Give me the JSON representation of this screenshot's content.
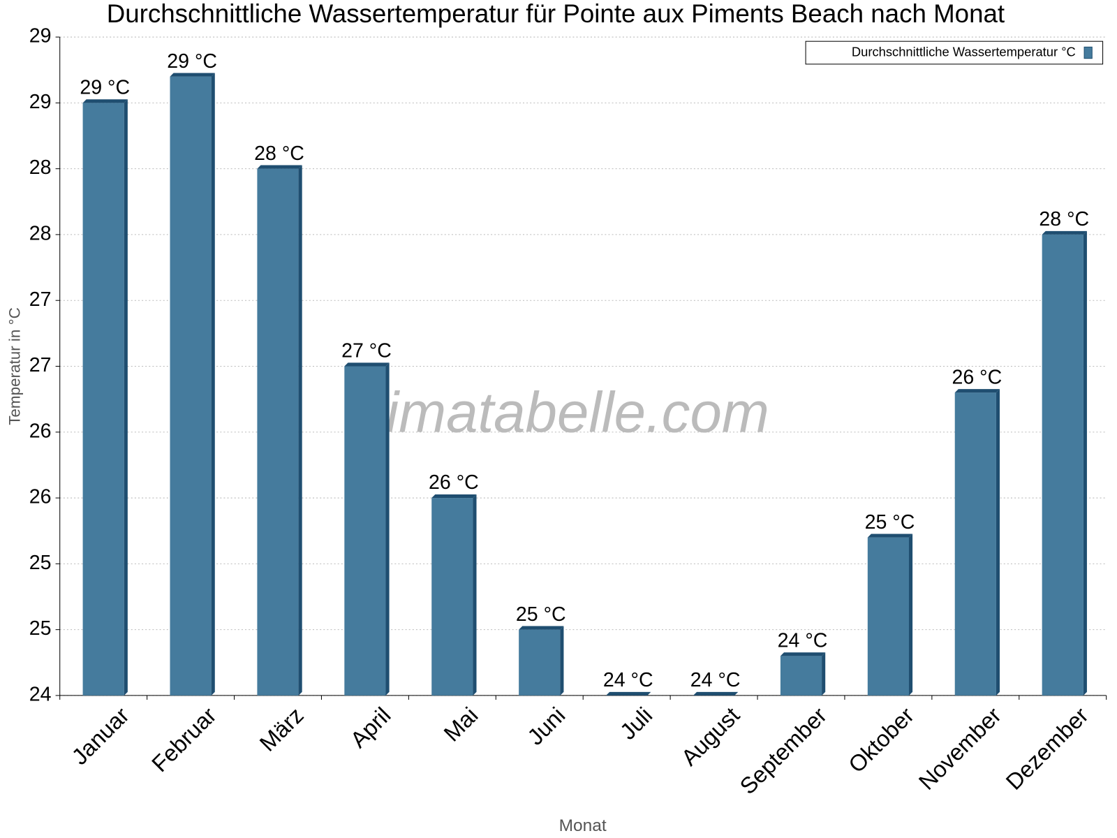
{
  "chart_data": {
    "type": "bar",
    "title": "Durchschnittliche Wassertemperatur für Pointe aux Piments Beach nach Monat",
    "x_label": "Monat",
    "y_label": "Temperatur in °C",
    "watermark": "klimatabelle.com",
    "categories": [
      "Januar",
      "Februar",
      "März",
      "April",
      "Mai",
      "Juni",
      "Juli",
      "August",
      "September",
      "Oktober",
      "November",
      "Dezember"
    ],
    "series": [
      {
        "name": "Durchschnittliche Wassertemperatur °C",
        "color": "#457b9d",
        "values": [
          28.5,
          28.7,
          28.0,
          26.5,
          25.5,
          24.5,
          24.0,
          24.0,
          24.3,
          25.2,
          26.3,
          27.5
        ],
        "value_labels": [
          "29 °C",
          "29 °C",
          "28 °C",
          "27 °C",
          "26 °C",
          "25 °C",
          "24 °C",
          "24 °C",
          "24 °C",
          "25 °C",
          "26 °C",
          "28 °C"
        ]
      }
    ],
    "ylim": [
      24,
      29
    ],
    "yticks": [
      24,
      {
        "value": 24.5,
        "label": "25"
      },
      25,
      {
        "value": 25.5,
        "label": "26"
      },
      26,
      {
        "value": 26.5,
        "label": "27"
      },
      27,
      {
        "value": 27.5,
        "label": "28"
      },
      28,
      {
        "value": 28.5,
        "label": "29"
      },
      29
    ],
    "grid": true,
    "legend": "upper right"
  }
}
